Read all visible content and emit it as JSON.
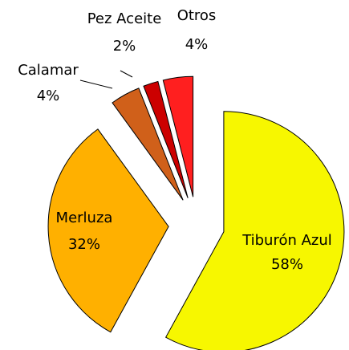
{
  "chart_data": {
    "type": "pie",
    "categories": [
      "Tiburón Azul",
      "Merluza",
      "Calamar",
      "Pez Aceite",
      "Otros"
    ],
    "values": [
      58,
      32,
      4,
      2,
      4
    ],
    "value_labels": [
      "58%",
      "32%",
      "4%",
      "2%",
      "4%"
    ],
    "colors": [
      "#f7f700",
      "#ffb000",
      "#d0601a",
      "#cc0000",
      "#ff1f1f"
    ]
  }
}
